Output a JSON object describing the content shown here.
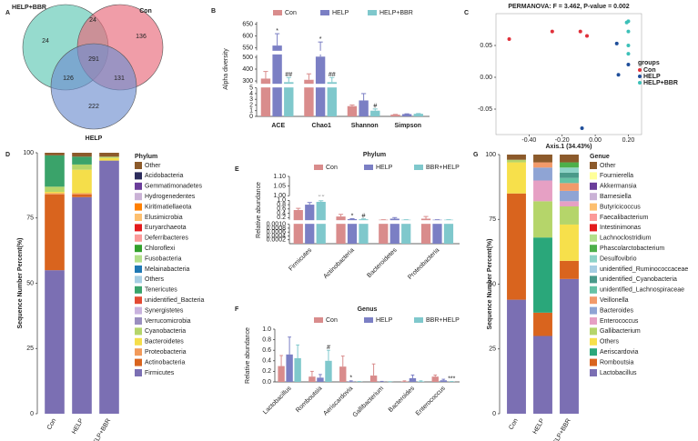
{
  "chart_data": [
    {
      "panel": "A",
      "type": "venn",
      "sets": [
        {
          "name": "HELP+BBR",
          "color": "#5ec8b4"
        },
        {
          "name": "Con",
          "color": "#e8687a"
        },
        {
          "name": "HELP",
          "color": "#6f8fcf"
        }
      ],
      "regions": [
        24,
        24,
        136,
        291,
        126,
        131,
        222
      ]
    },
    {
      "panel": "B",
      "type": "bar",
      "ylabel": "Alpha diversity",
      "categories": [
        "ACE",
        "Chao1",
        "Shannon",
        "Simpson"
      ],
      "series": [
        {
          "name": "Con",
          "color": "#d98c8c",
          "values": [
            320,
            310,
            1.8,
            0.3
          ],
          "errors": [
            60,
            50,
            0.2,
            0.05
          ]
        },
        {
          "name": "HELP",
          "color": "#7b7fc4",
          "values": [
            560,
            505,
            2.8,
            0.4
          ],
          "errors": [
            50,
            70,
            1.2,
            0.05
          ],
          "significance": [
            "*",
            "*",
            null,
            null
          ]
        },
        {
          "name": "HELP+BBR",
          "color": "#7fc8cc",
          "values": [
            290,
            290,
            1.0,
            0.45
          ],
          "errors": [
            40,
            40,
            0.3,
            0.05
          ],
          "significance": [
            "##",
            "##",
            "#",
            null
          ]
        }
      ],
      "ysegments": [
        {
          "ylim": [
            0,
            5
          ],
          "yticks": [
            0,
            1,
            2,
            3,
            4,
            5
          ]
        },
        {
          "ylim": [
            280,
            520
          ],
          "yticks": [
            300,
            400,
            500
          ]
        },
        {
          "ylim": [
            540,
            660
          ],
          "yticks": [
            550,
            600,
            650
          ]
        }
      ]
    },
    {
      "panel": "C",
      "type": "scatter",
      "title": "PERMANOVA: F = 3.462, P-value = 0.002",
      "xlabel": "Axis.1 (34.43%)",
      "legend_title": "groups",
      "xlim": [
        -0.6,
        0.28
      ],
      "ylim": [
        -0.09,
        0.1
      ],
      "xticks": [
        {
          "value": -0.4,
          "label": "-0.40"
        },
        {
          "value": -0.2,
          "label": "-0.20"
        },
        {
          "value": 0,
          "label": "0.00"
        },
        {
          "value": 0.2,
          "label": "0.20"
        }
      ],
      "yticks": [
        -0.05,
        {
          "value": 0,
          "label": "0.00"
        },
        0.05
      ],
      "series": [
        {
          "name": "Con",
          "color": "#e0303a",
          "x": [
            -0.52,
            -0.26,
            -0.09,
            -0.05
          ],
          "y": [
            0.06,
            0.072,
            0.072,
            0.065
          ]
        },
        {
          "name": "HELP",
          "color": "#1f4e9a",
          "x": [
            0.14,
            0.2,
            0.13,
            -0.08
          ],
          "y": [
            0.004,
            0.02,
            0.053,
            -0.08
          ]
        },
        {
          "name": "HELP+BBR",
          "color": "#3cc0b8",
          "x": [
            0.19,
            0.2,
            0.2,
            0.2,
            0.2
          ],
          "y": [
            0.086,
            0.088,
            0.072,
            0.05,
            0.037
          ]
        }
      ]
    },
    {
      "panel": "D",
      "type": "stacked_bar",
      "ylabel": "Sequence Number Percent(%)",
      "legend_title": "Phylum",
      "categories": [
        "Con",
        "HELP",
        "HELP+BBR"
      ],
      "ylim": [
        0,
        100
      ],
      "yticks": [
        0,
        25,
        50,
        75,
        100
      ],
      "series": [
        {
          "name": "Firmicutes",
          "color": "#7b6fb3",
          "values": [
            55,
            83,
            97
          ]
        },
        {
          "name": "Actinobacteria",
          "color": "#d9641e",
          "values": [
            29,
            1,
            0
          ]
        },
        {
          "name": "Proteobacteria",
          "color": "#f29a5a",
          "values": [
            0.5,
            0.5,
            0
          ]
        },
        {
          "name": "Bacteroidetes",
          "color": "#f5de4a",
          "values": [
            0.5,
            9,
            1
          ]
        },
        {
          "name": "Cyanobacteria",
          "color": "#b5d56a",
          "values": [
            2,
            2,
            0.5
          ]
        },
        {
          "name": "Verrucomicrobia",
          "color": "#9a8fbf",
          "values": [
            0,
            0,
            0
          ]
        },
        {
          "name": "Synergistetes",
          "color": "#c9b3de",
          "values": [
            0,
            0,
            0
          ]
        },
        {
          "name": "unidentified_Bacteria",
          "color": "#e34a33",
          "values": [
            0,
            0,
            0
          ]
        },
        {
          "name": "Tenericutes",
          "color": "#3aa36a",
          "values": [
            12,
            3,
            0
          ]
        },
        {
          "name": "Others",
          "color": "#a6cee3",
          "values": [
            0,
            0,
            0
          ]
        },
        {
          "name": "Melainabacteria",
          "color": "#1f78b4",
          "values": [
            0,
            0,
            0
          ]
        },
        {
          "name": "Fusobacteria",
          "color": "#b2df8a",
          "values": [
            0,
            0,
            0
          ]
        },
        {
          "name": "Chloroflexi",
          "color": "#33a02c",
          "values": [
            0,
            0,
            0
          ]
        },
        {
          "name": "Deferribacteres",
          "color": "#fb9a99",
          "values": [
            0,
            0,
            0
          ]
        },
        {
          "name": "Euryarchaeota",
          "color": "#e31a1c",
          "values": [
            0,
            0,
            0
          ]
        },
        {
          "name": "Elusimicrobia",
          "color": "#fdbf6f",
          "values": [
            0,
            0,
            0
          ]
        },
        {
          "name": "Kiritimatiellaeota",
          "color": "#ff7f00",
          "values": [
            0,
            0,
            0
          ]
        },
        {
          "name": "Hydrogenedentes",
          "color": "#cab2d6",
          "values": [
            0,
            0,
            0
          ]
        },
        {
          "name": "Gemmatimonadetes",
          "color": "#6a3d9a",
          "values": [
            0,
            0,
            0
          ]
        },
        {
          "name": "Acidobacteria",
          "color": "#2c2c5c",
          "values": [
            0,
            0,
            0
          ]
        },
        {
          "name": "Other",
          "color": "#8c5a2b",
          "values": [
            1,
            1.5,
            1.5
          ]
        }
      ]
    },
    {
      "panel": "E",
      "type": "bar",
      "title": "Phylum",
      "ylabel": "Relative abundance",
      "categories": [
        "Firmicutes",
        "Actinobacteria",
        "Bacteroidetes",
        "Proteobacteria"
      ],
      "series": [
        {
          "name": "Con",
          "color": "#d98c8c",
          "values": [
            0.55,
            0.25,
            0.05,
            0.15
          ],
          "errors": [
            0.08,
            0.1,
            0.02,
            0.1
          ]
        },
        {
          "name": "HELP",
          "color": "#7b7fc4",
          "values": [
            0.8,
            0.13,
            0.15,
            0.08
          ],
          "errors": [
            0.1,
            0.02,
            0.05,
            0.02
          ],
          "significance": [
            "*",
            "*",
            null,
            null
          ]
        },
        {
          "name": "BBR+HELP",
          "color": "#7fc8cc",
          "values": [
            0.93,
            0.12,
            0.08,
            0.05
          ],
          "errors": [
            0.05,
            0.02,
            0.02,
            0.01
          ],
          "significance": [
            "##",
            "#",
            null,
            null
          ]
        }
      ],
      "ysegments": [
        {
          "ylim": [
            0,
            0.001
          ],
          "yticks": [
            0.0002,
            0.0004,
            0.0006,
            0.0008,
            {
              "value": 0.001,
              "label": "0.0010"
            }
          ]
        },
        {
          "ylim": [
            0.1,
            1.0
          ],
          "yticks": [
            0.2,
            0.4,
            0.6,
            0.8,
            {
              "value": 1.0,
              "label": "1.0"
            }
          ]
        },
        {
          "ylim": [
            1.0,
            1.1
          ],
          "yticks": [
            {
              "value": 1.0,
              "label": "1.00"
            },
            1.05,
            {
              "value": 1.1,
              "label": "1.10"
            }
          ]
        }
      ]
    },
    {
      "panel": "F",
      "type": "bar",
      "title": "Genus",
      "ylabel": "Relative abundance",
      "categories": [
        "Lactobacillus",
        "Romboutsia",
        "Aeriscardovia",
        "Gallibacterium",
        "Bacteroides",
        "Enterococcus"
      ],
      "ylim": [
        0,
        1.0
      ],
      "yticks": [
        {
          "value": 0,
          "label": "0.0"
        },
        0.2,
        0.4,
        0.6,
        0.8,
        {
          "value": 1.0,
          "label": "1.0"
        }
      ],
      "series": [
        {
          "name": "Con",
          "color": "#d98c8c",
          "values": [
            0.3,
            0.1,
            0.29,
            0.12,
            0.01,
            0.1
          ],
          "errors": [
            0.2,
            0.1,
            0.2,
            0.22,
            0.01,
            0.03
          ]
        },
        {
          "name": "HELP",
          "color": "#7b7fc4",
          "values": [
            0.52,
            0.08,
            0.01,
            0.005,
            0.07,
            0.03
          ],
          "errors": [
            0.33,
            0.06,
            0.01,
            0.005,
            0.06,
            0.02
          ],
          "significance": [
            null,
            null,
            "*",
            null,
            null,
            null
          ]
        },
        {
          "name": "BBR+HELP",
          "color": "#7fc8cc",
          "values": [
            0.45,
            0.4,
            0.005,
            0.003,
            0.01,
            0.005
          ],
          "errors": [
            0.25,
            0.2,
            0.003,
            0.002,
            0.01,
            0.003
          ],
          "significance": [
            null,
            "#",
            null,
            null,
            null,
            "***"
          ]
        }
      ]
    },
    {
      "panel": "G",
      "type": "stacked_bar",
      "ylabel": "Sequence Number Percent(%)",
      "legend_title": "Genue",
      "categories": [
        "Con",
        "HELP",
        "HELP+BBR"
      ],
      "ylim": [
        0,
        100
      ],
      "yticks": [
        0,
        25,
        50,
        75,
        100
      ],
      "series": [
        {
          "name": "Lactobacillus",
          "color": "#7b6fb3",
          "values": [
            44,
            30,
            52
          ]
        },
        {
          "name": "Romboutsia",
          "color": "#d9641e",
          "values": [
            41,
            9,
            7
          ]
        },
        {
          "name": "Aeriscardovia",
          "color": "#2aa77a",
          "values": [
            0,
            29,
            0
          ]
        },
        {
          "name": "Others",
          "color": "#f7e04b",
          "values": [
            12,
            0,
            14
          ]
        },
        {
          "name": "Gallibacterium",
          "color": "#b5d56a",
          "values": [
            1,
            14,
            7
          ]
        },
        {
          "name": "Enterococcus",
          "color": "#e6a0c4",
          "values": [
            0,
            8,
            2
          ]
        },
        {
          "name": "Bacteroides",
          "color": "#8fa4d4",
          "values": [
            0,
            5,
            4
          ]
        },
        {
          "name": "Veillonella",
          "color": "#f29a6a",
          "values": [
            0,
            2,
            3
          ]
        },
        {
          "name": "unidentified_Lachnospiraceae",
          "color": "#66c2a5",
          "values": [
            0,
            0,
            2
          ]
        },
        {
          "name": "unidentified_Cyanobacteria",
          "color": "#4a9a8a",
          "values": [
            0,
            0,
            2
          ]
        },
        {
          "name": "unidentified_Ruminococcaceae",
          "color": "#a6cee3",
          "values": [
            0,
            0,
            0
          ]
        },
        {
          "name": "Desulfovibrio",
          "color": "#8dd3c7",
          "values": [
            0,
            0,
            2
          ]
        },
        {
          "name": "Phascolarctobacterium",
          "color": "#4daf4a",
          "values": [
            0,
            0,
            2
          ]
        },
        {
          "name": "Lachnoclostridium",
          "color": "#b2df8a",
          "values": [
            0,
            0,
            0
          ]
        },
        {
          "name": "Intestinimonas",
          "color": "#e31a1c",
          "values": [
            0,
            0,
            0
          ]
        },
        {
          "name": "Faecalibacterium",
          "color": "#fb9a99",
          "values": [
            0,
            0,
            0
          ]
        },
        {
          "name": "Butyricicoccus",
          "color": "#fdbf6f",
          "values": [
            0,
            0,
            0
          ]
        },
        {
          "name": "Barnesiella",
          "color": "#cab2d6",
          "values": [
            0,
            0,
            0
          ]
        },
        {
          "name": "Akkermansia",
          "color": "#6a3d9a",
          "values": [
            0,
            0,
            0
          ]
        },
        {
          "name": "Fournierella",
          "color": "#ffff99",
          "values": [
            0,
            0,
            0
          ]
        },
        {
          "name": "Other",
          "color": "#8c5a2b",
          "values": [
            2,
            3,
            3
          ]
        }
      ]
    }
  ]
}
